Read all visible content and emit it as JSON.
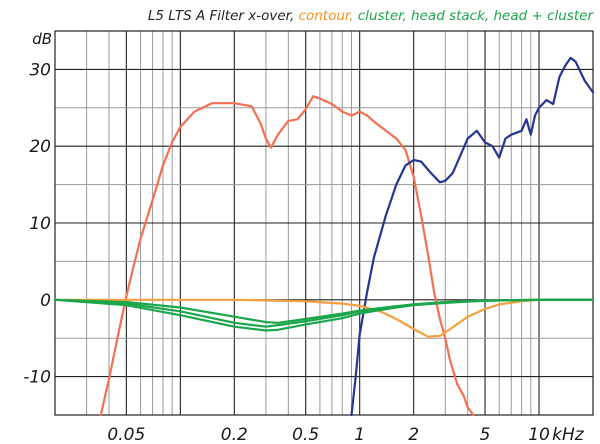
{
  "chart_data": {
    "type": "line",
    "title_parts": [
      {
        "text": "L5 LTS A Filter x-over,",
        "color": "#222222"
      },
      {
        "text": "contour,",
        "color": "#f7921e"
      },
      {
        "text": "cluster,",
        "color": "#1aa64a"
      },
      {
        "text": "head stack,",
        "color": "#1aa64a"
      },
      {
        "text": "head + cluster",
        "color": "#1aa64a"
      }
    ],
    "x_scale": "log",
    "xlim": [
      0.02,
      20
    ],
    "ylim": [
      -15,
      35
    ],
    "ylabel": "dB",
    "xlabel": "kHz",
    "y_ticks": [
      30,
      20,
      10,
      0,
      -10
    ],
    "y_tick_labels": [
      "30",
      "20",
      "10",
      "0",
      "-10"
    ],
    "x_ticks": [
      0.05,
      0.2,
      0.5,
      1,
      2,
      5,
      10
    ],
    "x_tick_labels": [
      "0.05",
      "0.2",
      "0.5",
      "1",
      "2",
      "5",
      "10"
    ],
    "x_unit_label": "kHz",
    "grid": true,
    "background": "#ffffff",
    "series": [
      {
        "color": "#f47050",
        "points": [
          [
            0.036,
            -15
          ],
          [
            0.04,
            -10.3
          ],
          [
            0.045,
            -4.5
          ],
          [
            0.05,
            0.5
          ],
          [
            0.055,
            4.5
          ],
          [
            0.06,
            8
          ],
          [
            0.07,
            13
          ],
          [
            0.08,
            17.5
          ],
          [
            0.09,
            20.5
          ],
          [
            0.1,
            22.5
          ],
          [
            0.12,
            24.5
          ],
          [
            0.15,
            25.6
          ],
          [
            0.2,
            25.6
          ],
          [
            0.25,
            25.2
          ],
          [
            0.28,
            23
          ],
          [
            0.3,
            21
          ],
          [
            0.32,
            19.8
          ],
          [
            0.35,
            21.5
          ],
          [
            0.4,
            23.3
          ],
          [
            0.45,
            23.5
          ],
          [
            0.5,
            24.8
          ],
          [
            0.55,
            26.5
          ],
          [
            0.6,
            26.2
          ],
          [
            0.7,
            25.5
          ],
          [
            0.8,
            24.5
          ],
          [
            0.9,
            24
          ],
          [
            1.0,
            24.5
          ],
          [
            1.1,
            24
          ],
          [
            1.2,
            23.2
          ],
          [
            1.4,
            22
          ],
          [
            1.6,
            21
          ],
          [
            1.8,
            19.5
          ],
          [
            2.0,
            16
          ],
          [
            2.2,
            11
          ],
          [
            2.4,
            6
          ],
          [
            2.6,
            1
          ],
          [
            2.8,
            -2.5
          ],
          [
            3.0,
            -5
          ],
          [
            3.2,
            -8
          ],
          [
            3.5,
            -11
          ],
          [
            3.8,
            -12.5
          ],
          [
            4.0,
            -14
          ],
          [
            4.3,
            -15
          ]
        ]
      },
      {
        "color": "#253594",
        "points": [
          [
            0.9,
            -15
          ],
          [
            0.95,
            -10
          ],
          [
            1.0,
            -4.5
          ],
          [
            1.1,
            1
          ],
          [
            1.2,
            5.5
          ],
          [
            1.4,
            11
          ],
          [
            1.6,
            15
          ],
          [
            1.8,
            17.5
          ],
          [
            2.0,
            18.2
          ],
          [
            2.2,
            18
          ],
          [
            2.5,
            16.5
          ],
          [
            2.8,
            15.3
          ],
          [
            3.0,
            15.5
          ],
          [
            3.3,
            16.5
          ],
          [
            3.6,
            18.5
          ],
          [
            4.0,
            21
          ],
          [
            4.5,
            22
          ],
          [
            5.0,
            20.5
          ],
          [
            5.5,
            20
          ],
          [
            6.0,
            18.5
          ],
          [
            6.5,
            21
          ],
          [
            7.0,
            21.5
          ],
          [
            8.0,
            22
          ],
          [
            8.5,
            23.5
          ],
          [
            9.0,
            21.5
          ],
          [
            9.5,
            24
          ],
          [
            10,
            25
          ],
          [
            11,
            26
          ],
          [
            12,
            25.5
          ],
          [
            13,
            29
          ],
          [
            14,
            30.5
          ],
          [
            15,
            31.5
          ],
          [
            16,
            31
          ],
          [
            18,
            28.5
          ],
          [
            20,
            27
          ]
        ]
      },
      {
        "color": "#f7a040",
        "points": [
          [
            0.02,
            0
          ],
          [
            0.2,
            0
          ],
          [
            0.5,
            -0.2
          ],
          [
            0.8,
            -0.5
          ],
          [
            1.0,
            -0.8
          ],
          [
            1.3,
            -1.5
          ],
          [
            1.6,
            -2.5
          ],
          [
            2.0,
            -3.8
          ],
          [
            2.4,
            -4.8
          ],
          [
            2.8,
            -4.7
          ],
          [
            3.2,
            -3.8
          ],
          [
            4.0,
            -2.2
          ],
          [
            5.0,
            -1.2
          ],
          [
            6.0,
            -0.6
          ],
          [
            8.0,
            -0.2
          ],
          [
            10,
            0
          ],
          [
            20,
            0
          ]
        ]
      },
      {
        "color": "#1aa64a",
        "points": [
          [
            0.02,
            0
          ],
          [
            0.05,
            -0.5
          ],
          [
            0.1,
            -1.5
          ],
          [
            0.2,
            -3
          ],
          [
            0.3,
            -3.5
          ],
          [
            0.35,
            -3.3
          ],
          [
            0.5,
            -2.8
          ],
          [
            0.8,
            -2
          ],
          [
            1.0,
            -1.5
          ],
          [
            1.5,
            -1
          ],
          [
            2.0,
            -0.6
          ],
          [
            3.0,
            -0.3
          ],
          [
            5.0,
            -0.1
          ],
          [
            10,
            0
          ],
          [
            20,
            0
          ]
        ]
      },
      {
        "color": "#1aa64a",
        "points": [
          [
            0.02,
            0
          ],
          [
            0.05,
            -0.7
          ],
          [
            0.1,
            -2
          ],
          [
            0.2,
            -3.5
          ],
          [
            0.3,
            -4
          ],
          [
            0.35,
            -3.9
          ],
          [
            0.5,
            -3.2
          ],
          [
            0.8,
            -2.4
          ],
          [
            1.0,
            -1.8
          ],
          [
            1.5,
            -1.1
          ],
          [
            2.0,
            -0.7
          ],
          [
            3.0,
            -0.4
          ],
          [
            5.0,
            -0.1
          ],
          [
            10,
            0
          ],
          [
            20,
            0
          ]
        ]
      },
      {
        "color": "#1aa64a",
        "points": [
          [
            0.02,
            0
          ],
          [
            0.05,
            -0.3
          ],
          [
            0.1,
            -1
          ],
          [
            0.2,
            -2.2
          ],
          [
            0.3,
            -2.9
          ],
          [
            0.35,
            -3
          ],
          [
            0.5,
            -2.5
          ],
          [
            0.8,
            -1.8
          ],
          [
            1.0,
            -1.4
          ],
          [
            1.5,
            -0.9
          ],
          [
            2.0,
            -0.6
          ],
          [
            3.0,
            -0.3
          ],
          [
            5.0,
            -0.1
          ],
          [
            10,
            0
          ],
          [
            20,
            0
          ]
        ]
      }
    ]
  }
}
